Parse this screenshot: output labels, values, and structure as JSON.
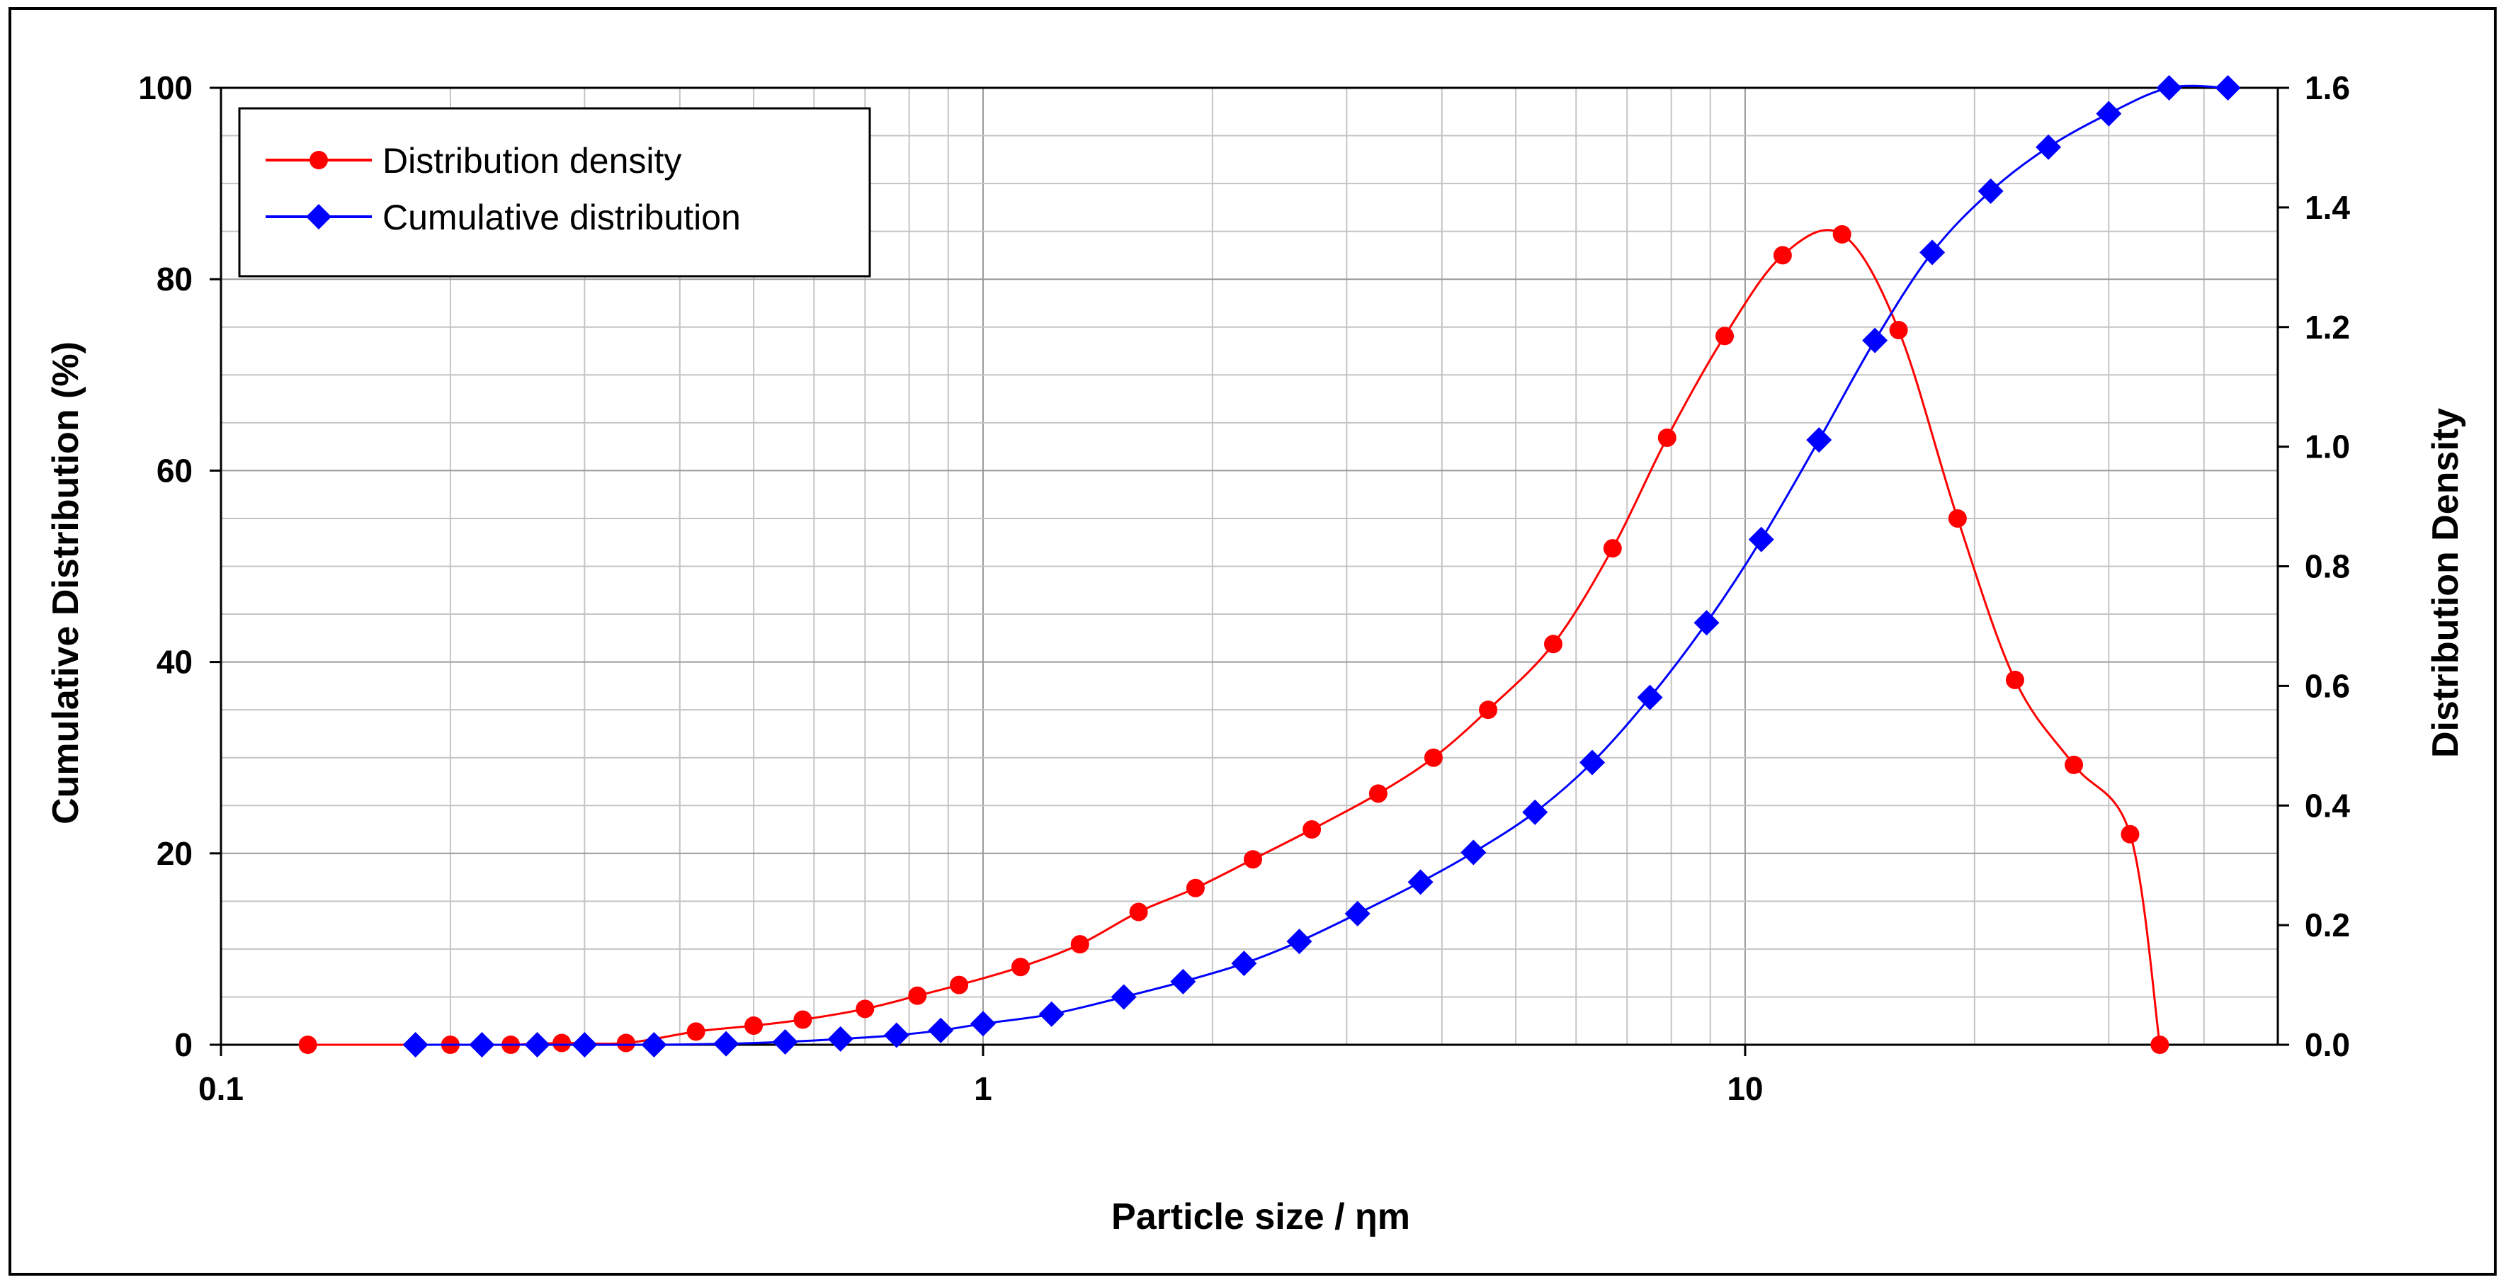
{
  "chart_data": {
    "type": "line",
    "xscale": "log",
    "xlim": [
      0.1,
      50
    ],
    "ylim_left": [
      0,
      100
    ],
    "ylim_right": [
      0,
      1.6
    ],
    "xlabel": "Particle size / ηm",
    "ylabel_left": "Cumulative Distribution (%)",
    "ylabel_right": "Distribution Density",
    "grid": true,
    "legend_position": "top-left",
    "x_ticks": [
      {
        "value": 0.1,
        "label": "0.1"
      },
      {
        "value": 1,
        "label": "1"
      },
      {
        "value": 10,
        "label": "10"
      }
    ],
    "y_left_ticks": [
      {
        "value": 0,
        "label": "0"
      },
      {
        "value": 20,
        "label": "20"
      },
      {
        "value": 40,
        "label": "40"
      },
      {
        "value": 60,
        "label": "60"
      },
      {
        "value": 80,
        "label": "80"
      },
      {
        "value": 100,
        "label": "100"
      }
    ],
    "y_right_ticks": [
      {
        "value": 0,
        "label": "0.0"
      },
      {
        "value": 0.2,
        "label": "0.2"
      },
      {
        "value": 0.4,
        "label": "0.4"
      },
      {
        "value": 0.6,
        "label": "0.6"
      },
      {
        "value": 0.8,
        "label": "0.8"
      },
      {
        "value": 1.0,
        "label": "1.0"
      },
      {
        "value": 1.2,
        "label": "1.2"
      },
      {
        "value": 1.4,
        "label": "1.4"
      },
      {
        "value": 1.6,
        "label": "1.6"
      }
    ],
    "series": [
      {
        "name": "Distribution density",
        "axis": "right",
        "color": "#ff0000",
        "marker": "circle",
        "x": [
          0.13,
          0.2,
          0.24,
          0.28,
          0.34,
          0.42,
          0.5,
          0.58,
          0.7,
          0.82,
          0.93,
          1.12,
          1.34,
          1.6,
          1.9,
          2.26,
          2.7,
          3.3,
          3.9,
          4.6,
          5.6,
          6.7,
          7.9,
          9.4,
          11.2,
          13.4,
          15.9,
          19,
          22.6,
          27,
          32,
          35
        ],
        "y": [
          0.0,
          0.0,
          0.0,
          0.003,
          0.003,
          0.022,
          0.032,
          0.042,
          0.06,
          0.082,
          0.1,
          0.13,
          0.168,
          0.222,
          0.262,
          0.31,
          0.36,
          0.42,
          0.48,
          0.56,
          0.67,
          0.83,
          1.015,
          1.185,
          1.32,
          1.355,
          1.195,
          0.88,
          0.61,
          0.468,
          0.352,
          0.0
        ]
      },
      {
        "name": "Cumulative distribution",
        "axis": "left",
        "color": "#0000ff",
        "marker": "diamond",
        "x": [
          0.18,
          0.22,
          0.26,
          0.3,
          0.37,
          0.46,
          0.55,
          0.65,
          0.77,
          0.88,
          1.0,
          1.23,
          1.53,
          1.83,
          2.2,
          2.6,
          3.1,
          3.75,
          4.4,
          5.3,
          6.3,
          7.5,
          8.9,
          10.5,
          12.5,
          14.8,
          17.6,
          21,
          25,
          30,
          36,
          43
        ],
        "y": [
          0,
          0,
          0,
          0,
          0,
          0.1,
          0.3,
          0.6,
          1.0,
          1.5,
          2.2,
          3.2,
          5.0,
          6.6,
          8.5,
          10.8,
          13.7,
          17.0,
          20.1,
          24.3,
          29.5,
          36.3,
          44.1,
          52.8,
          63.2,
          73.6,
          82.8,
          89.2,
          93.8,
          97.3,
          100,
          100
        ]
      }
    ]
  }
}
